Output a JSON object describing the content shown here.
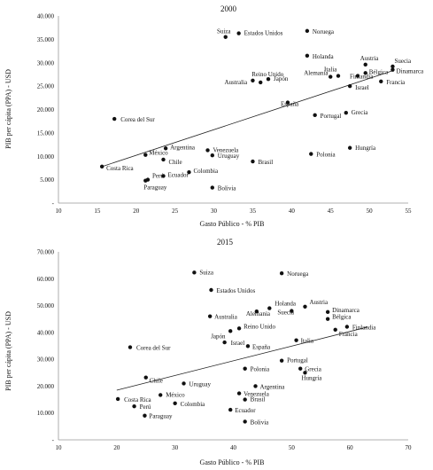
{
  "chart_data": [
    {
      "type": "scatter",
      "title": "2000",
      "xlabel": "Gasto Público - % PIB",
      "ylabel": "PIB per cápita (PPA) - USD",
      "xlim": [
        10,
        55
      ],
      "ylim": [
        0,
        40000
      ],
      "xticks": [
        10,
        15,
        20,
        25,
        30,
        35,
        40,
        45,
        50,
        55
      ],
      "yticks": [
        {
          "v": 0,
          "label": "-"
        },
        {
          "v": 5000,
          "label": "5.000"
        },
        {
          "v": 10000,
          "label": "10.000"
        },
        {
          "v": 15000,
          "label": "15.000"
        },
        {
          "v": 20000,
          "label": "20.000"
        },
        {
          "v": 25000,
          "label": "25.000"
        },
        {
          "v": 30000,
          "label": "30.000"
        },
        {
          "v": 35000,
          "label": "35.000"
        },
        {
          "v": 40000,
          "label": "40.000"
        }
      ],
      "grid": false,
      "trendline": [
        [
          15.6,
          7800
        ],
        [
          53,
          28300
        ]
      ],
      "points": [
        {
          "name": "Suiza",
          "x": 31.5,
          "y": 35500
        },
        {
          "name": "Estados Unidos",
          "x": 33.2,
          "y": 36300
        },
        {
          "name": "Noruega",
          "x": 42.0,
          "y": 36800
        },
        {
          "name": "Holanda",
          "x": 42.0,
          "y": 31500
        },
        {
          "name": "Austria",
          "x": 49.5,
          "y": 29600
        },
        {
          "name": "Suecia",
          "x": 53.0,
          "y": 29200
        },
        {
          "name": "Dinamarca",
          "x": 53.0,
          "y": 28500
        },
        {
          "name": "Italia",
          "x": 46.0,
          "y": 27200
        },
        {
          "name": "Bélgica",
          "x": 49.5,
          "y": 27800
        },
        {
          "name": "Finlandia",
          "x": 48.5,
          "y": 27200
        },
        {
          "name": "Alemania",
          "x": 45.0,
          "y": 27000
        },
        {
          "name": "Francia",
          "x": 51.5,
          "y": 26000
        },
        {
          "name": "Israel",
          "x": 47.5,
          "y": 25000
        },
        {
          "name": "Reino Unido",
          "x": 36.0,
          "y": 25800
        },
        {
          "name": "Japón",
          "x": 37.0,
          "y": 26500
        },
        {
          "name": "Australia",
          "x": 35.0,
          "y": 26200
        },
        {
          "name": "España",
          "x": 39.5,
          "y": 21500
        },
        {
          "name": "Portugal",
          "x": 43.0,
          "y": 18800
        },
        {
          "name": "Grecia",
          "x": 47.0,
          "y": 19300
        },
        {
          "name": "Corea del Sur",
          "x": 17.2,
          "y": 18000
        },
        {
          "name": "Argentina",
          "x": 23.8,
          "y": 11700
        },
        {
          "name": "Venezuela",
          "x": 29.2,
          "y": 11300
        },
        {
          "name": "México",
          "x": 21.2,
          "y": 10300
        },
        {
          "name": "Uruguay",
          "x": 29.8,
          "y": 10200
        },
        {
          "name": "Chile",
          "x": 23.5,
          "y": 9300
        },
        {
          "name": "Costa Rica",
          "x": 15.6,
          "y": 7800
        },
        {
          "name": "Brasil",
          "x": 35.0,
          "y": 8900
        },
        {
          "name": "Colombia",
          "x": 26.8,
          "y": 6600
        },
        {
          "name": "Ecuador",
          "x": 23.5,
          "y": 5800
        },
        {
          "name": "Perú",
          "x": 21.5,
          "y": 5000
        },
        {
          "name": "Paraguay",
          "x": 21.2,
          "y": 4800
        },
        {
          "name": "Bolivia",
          "x": 29.8,
          "y": 3300
        },
        {
          "name": "Polonia",
          "x": 42.5,
          "y": 10500
        },
        {
          "name": "Hungría",
          "x": 47.5,
          "y": 11800
        }
      ]
    },
    {
      "type": "scatter",
      "title": "2015",
      "xlabel": "Gasto Público - % PIB",
      "ylabel": "PIB per cápita (PPA) - USD",
      "xlim": [
        10,
        70
      ],
      "ylim": [
        0,
        70000
      ],
      "xticks": [
        10,
        20,
        30,
        40,
        50,
        60,
        70
      ],
      "yticks": [
        {
          "v": 0,
          "label": "-"
        },
        {
          "v": 10000,
          "label": "10.000"
        },
        {
          "v": 20000,
          "label": "20.000"
        },
        {
          "v": 30000,
          "label": "30.000"
        },
        {
          "v": 40000,
          "label": "40.000"
        },
        {
          "v": 50000,
          "label": "50.000"
        },
        {
          "v": 60000,
          "label": "60.000"
        },
        {
          "v": 70000,
          "label": "70.000"
        }
      ],
      "grid": false,
      "trendline": [
        [
          20,
          18500
        ],
        [
          63,
          42000
        ]
      ],
      "points": [
        {
          "name": "Suiza",
          "x": 33.3,
          "y": 62300
        },
        {
          "name": "Noruega",
          "x": 48.3,
          "y": 62000
        },
        {
          "name": "Estados Unidos",
          "x": 36.2,
          "y": 55800
        },
        {
          "name": "Holanda",
          "x": 46.2,
          "y": 49000
        },
        {
          "name": "Austria",
          "x": 52.3,
          "y": 49600
        },
        {
          "name": "Dinamarca",
          "x": 56.2,
          "y": 47600
        },
        {
          "name": "Suecia",
          "x": 50.0,
          "y": 48000
        },
        {
          "name": "Alemania",
          "x": 44.0,
          "y": 47800
        },
        {
          "name": "Australia",
          "x": 36.0,
          "y": 46000
        },
        {
          "name": "Bélgica",
          "x": 56.2,
          "y": 45000
        },
        {
          "name": "Finlandia",
          "x": 59.5,
          "y": 42100
        },
        {
          "name": "Francia",
          "x": 57.5,
          "y": 41000
        },
        {
          "name": "Reino Unido",
          "x": 41.0,
          "y": 41500
        },
        {
          "name": "Japón",
          "x": 39.5,
          "y": 40500
        },
        {
          "name": "Italia",
          "x": 50.8,
          "y": 37100
        },
        {
          "name": "Israel",
          "x": 38.5,
          "y": 36300
        },
        {
          "name": "España",
          "x": 42.5,
          "y": 34900
        },
        {
          "name": "Corea del Sur",
          "x": 22.3,
          "y": 34500
        },
        {
          "name": "Portugal",
          "x": 48.3,
          "y": 29500
        },
        {
          "name": "Polonia",
          "x": 42.0,
          "y": 26500
        },
        {
          "name": "Grecia",
          "x": 51.5,
          "y": 26500
        },
        {
          "name": "Hungría",
          "x": 52.3,
          "y": 25000
        },
        {
          "name": "Chile",
          "x": 25.0,
          "y": 23200
        },
        {
          "name": "Uruguay",
          "x": 31.5,
          "y": 21000
        },
        {
          "name": "Argentina",
          "x": 43.8,
          "y": 20000
        },
        {
          "name": "Venezuela",
          "x": 41.0,
          "y": 17300
        },
        {
          "name": "Brasil",
          "x": 42.0,
          "y": 15000
        },
        {
          "name": "México",
          "x": 27.5,
          "y": 16700
        },
        {
          "name": "Costa Rica",
          "x": 20.2,
          "y": 15200
        },
        {
          "name": "Colombia",
          "x": 30.0,
          "y": 13600
        },
        {
          "name": "Perú",
          "x": 23.0,
          "y": 12500
        },
        {
          "name": "Ecuador",
          "x": 39.5,
          "y": 11200
        },
        {
          "name": "Paraguay",
          "x": 24.8,
          "y": 9000
        },
        {
          "name": "Bolivia",
          "x": 42.0,
          "y": 6800
        }
      ]
    }
  ]
}
